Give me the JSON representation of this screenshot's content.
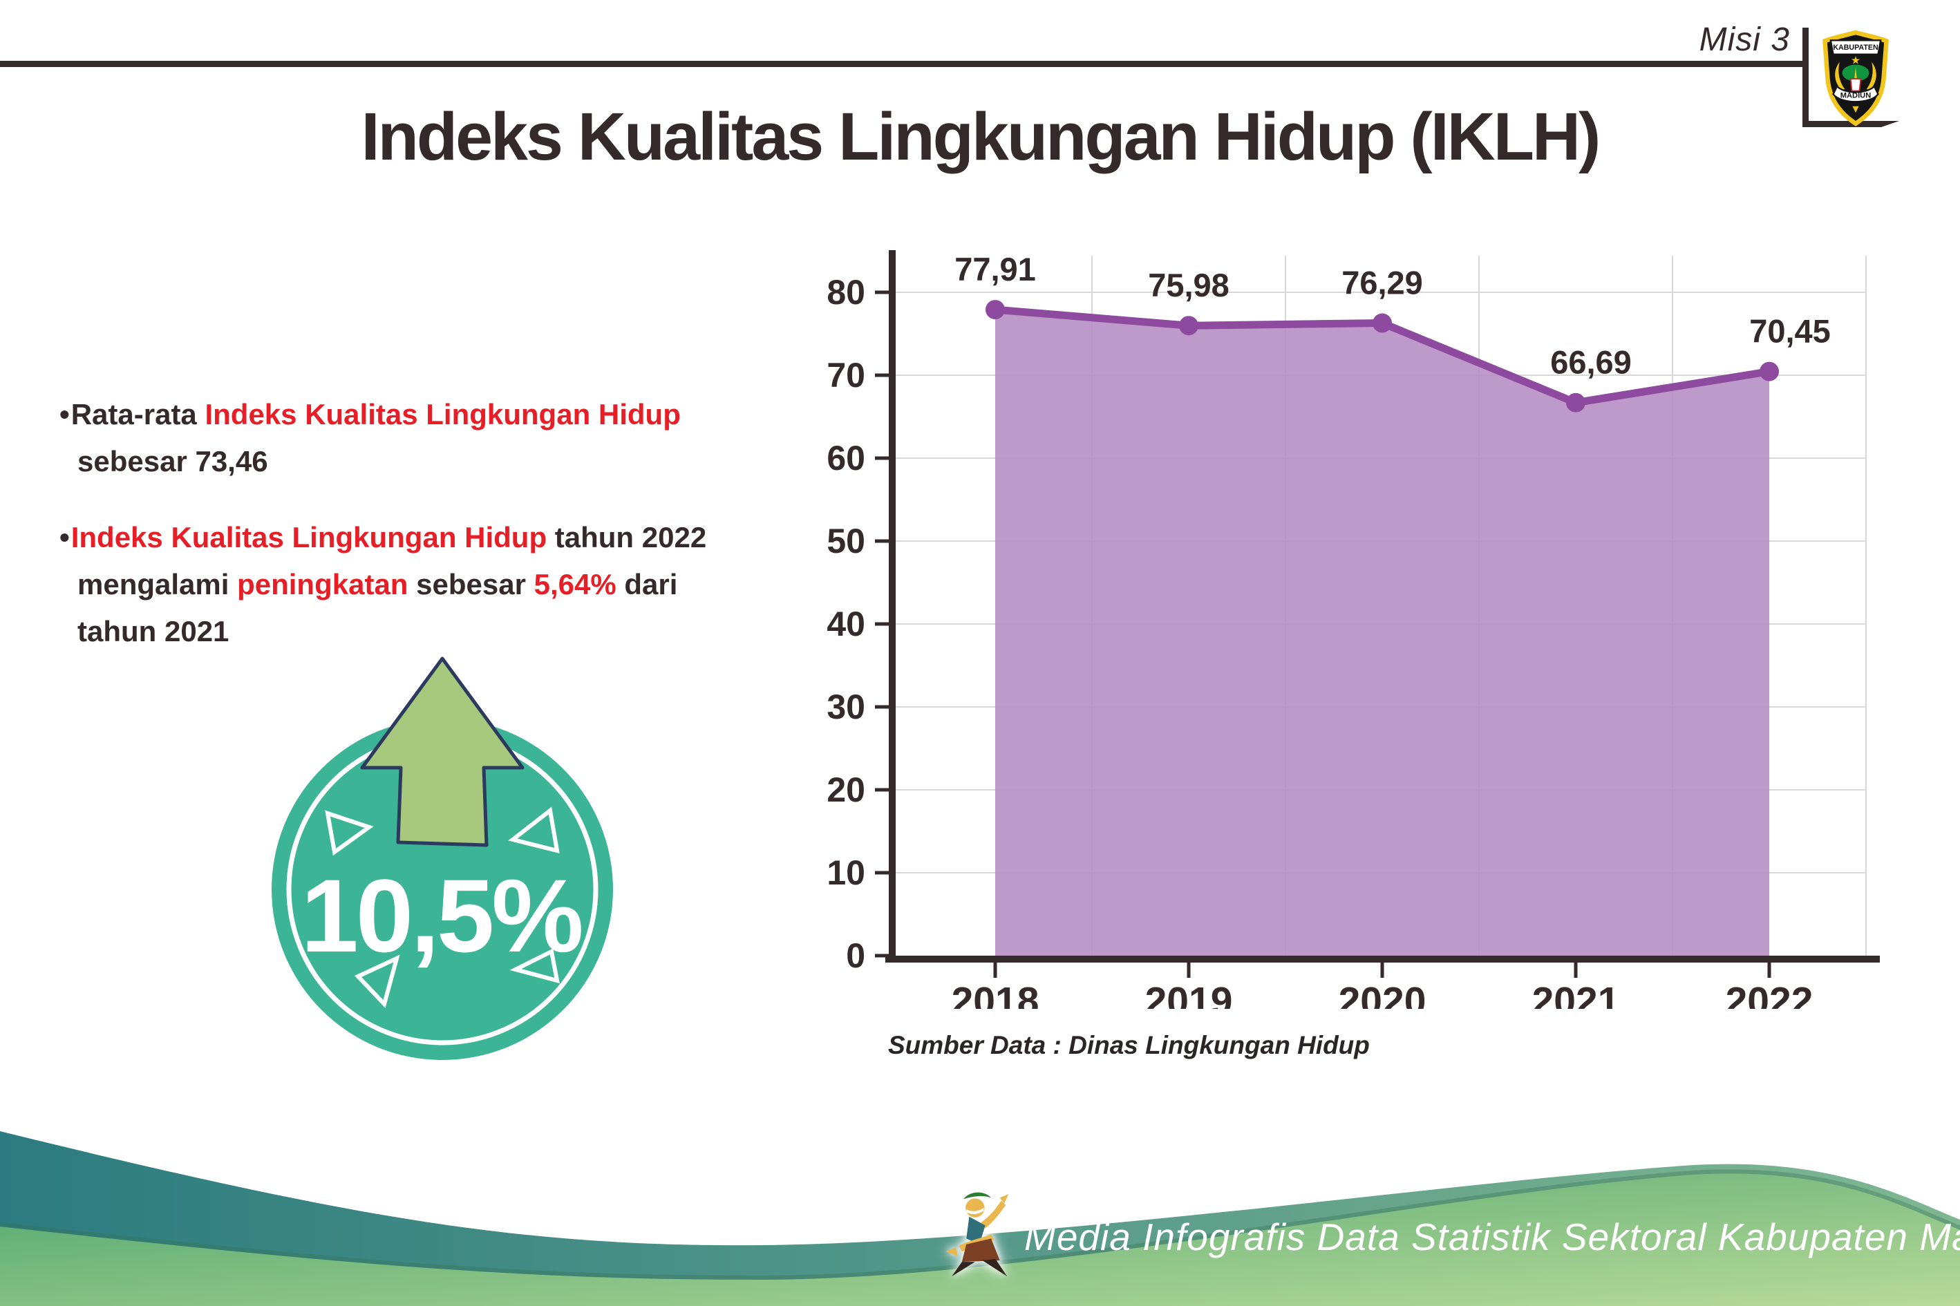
{
  "header": {
    "misi": "Misi 3",
    "title": "Indeks Kualitas Lingkungan Hidup (IKLH)",
    "logo_top": "KABUPATEN",
    "logo_bottom": "MADIUN"
  },
  "colors": {
    "dark": "#352a2b",
    "red": "#e81e26",
    "teal-badge": "#3bb596",
    "arrow-green": "#a6c97e",
    "arrow-outline": "#2b3a5e",
    "purple-fill": "#b58cc4",
    "purple-line": "#8d4a9e",
    "grid": "#d8d8d8",
    "wave-teal-left": "#2c7b80",
    "wave-teal-right": "#7fb792",
    "wave-green-left": "#4ea56f",
    "wave-green-right": "#b7da98"
  },
  "bullets": [
    {
      "lines": [
        {
          "segments": [
            {
              "t": "Rata-rata ",
              "c": "dark"
            },
            {
              "t": "Indeks Kualitas Lingkungan Hidup",
              "c": "red"
            }
          ]
        },
        {
          "segments": [
            {
              "t": "sebesar 73,46",
              "c": "dark"
            }
          ]
        }
      ]
    },
    {
      "lines": [
        {
          "segments": [
            {
              "t": "Indeks Kualitas Lingkungan Hidup",
              "c": "red"
            },
            {
              "t": " tahun 2022",
              "c": "dark"
            }
          ]
        },
        {
          "segments": [
            {
              "t": "mengalami ",
              "c": "dark"
            },
            {
              "t": "peningkatan",
              "c": "red"
            },
            {
              "t": " sebesar ",
              "c": "dark"
            },
            {
              "t": "5,64%",
              "c": "red"
            },
            {
              "t": " dari",
              "c": "dark"
            }
          ]
        },
        {
          "segments": [
            {
              "t": "tahun 2021",
              "c": "dark"
            }
          ]
        }
      ]
    }
  ],
  "bullet_char": "•",
  "badge": {
    "value": "10,5%",
    "direction": "up"
  },
  "chart_data": {
    "type": "area",
    "x": [
      "2018",
      "2019",
      "2020",
      "2021",
      "2022"
    ],
    "series": [
      {
        "name": "IKLH",
        "values": [
          77.91,
          75.98,
          76.29,
          66.69,
          70.45
        ],
        "labels": [
          "77,91",
          "75,98",
          "76,29",
          "66,69",
          "70,45"
        ]
      }
    ],
    "title": "",
    "xlabel": "",
    "ylabel": "",
    "ylim": [
      0,
      80
    ],
    "ytick_step": 10,
    "grid": true,
    "legend": false,
    "fill_color": "#b58cc4",
    "line_color": "#8d4a9e",
    "label_color": "#352a2b"
  },
  "source": "Sumber Data : Dinas Lingkungan Hidup",
  "footer": {
    "caption": "Media Infografis Data Statistik Sektoral Kabupaten Madiun |"
  }
}
